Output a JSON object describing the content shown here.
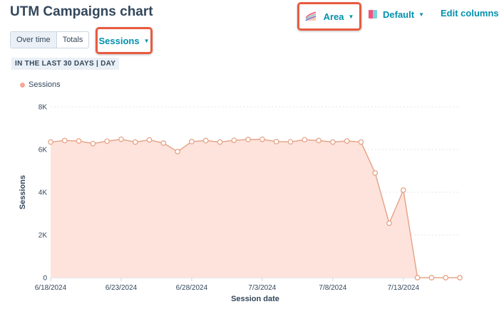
{
  "header": {
    "title": "UTM Campaigns chart",
    "chart_type_label": "Area",
    "color_label": "Default",
    "edit_columns_label": "Edit columns"
  },
  "controls": {
    "tabs": [
      "Over time",
      "Totals"
    ],
    "active_tab": "Over time",
    "metric_label": "Sessions",
    "date_range_label": "IN THE LAST 30 DAYS | DAY"
  },
  "colors": {
    "accent": "#0091ae",
    "highlight": "#e85b3f",
    "series_line": "#e6a589",
    "series_fill": "#fde3dc",
    "marker_fill": "#ffffff"
  },
  "chart_data": {
    "type": "area",
    "title": "",
    "xlabel": "Session date",
    "ylabel": "Sessions",
    "ylim": [
      0,
      8000
    ],
    "yticks": [
      "0",
      "2K",
      "4K",
      "6K",
      "8K"
    ],
    "xtick_labels": [
      "6/18/2024",
      "6/23/2024",
      "6/28/2024",
      "7/3/2024",
      "7/8/2024",
      "7/13/2024"
    ],
    "grid": "horizontal",
    "legend": "top-left",
    "series": [
      {
        "name": "Sessions",
        "x": [
          "6/18/2024",
          "6/19/2024",
          "6/20/2024",
          "6/21/2024",
          "6/22/2024",
          "6/23/2024",
          "6/24/2024",
          "6/25/2024",
          "6/26/2024",
          "6/27/2024",
          "6/28/2024",
          "6/29/2024",
          "6/30/2024",
          "7/1/2024",
          "7/2/2024",
          "7/3/2024",
          "7/4/2024",
          "7/5/2024",
          "7/6/2024",
          "7/7/2024",
          "7/8/2024",
          "7/9/2024",
          "7/10/2024",
          "7/11/2024",
          "7/12/2024",
          "7/13/2024",
          "7/14/2024",
          "7/15/2024",
          "7/16/2024",
          "7/17/2024"
        ],
        "values": [
          6350,
          6420,
          6400,
          6280,
          6390,
          6480,
          6350,
          6450,
          6300,
          5900,
          6370,
          6420,
          6350,
          6430,
          6470,
          6480,
          6370,
          6360,
          6460,
          6420,
          6350,
          6400,
          6350,
          4900,
          2550,
          4100,
          0,
          0,
          0,
          0
        ]
      }
    ]
  }
}
